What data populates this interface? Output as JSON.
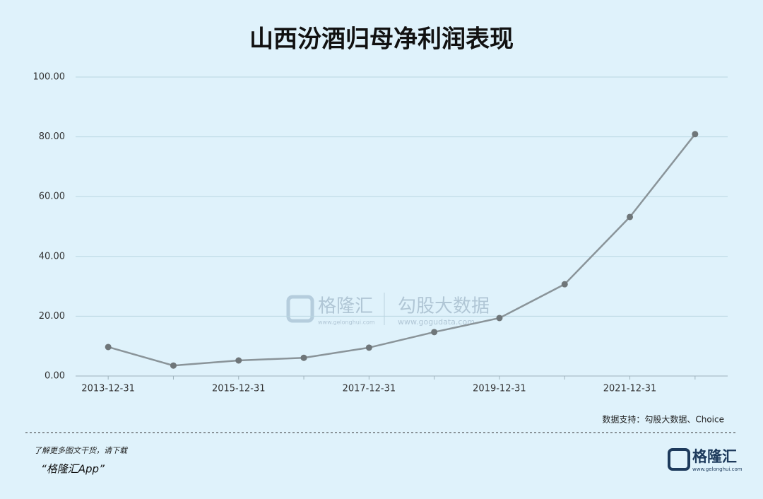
{
  "chart_data": {
    "type": "line",
    "title": "山西汾酒归母净利润表现",
    "categories": [
      "2013-12-31",
      null,
      "2015-12-31",
      null,
      "2017-12-31",
      null,
      "2019-12-31",
      null,
      "2021-12-31",
      null
    ],
    "values": [
      9.7,
      3.5,
      5.2,
      6.1,
      9.5,
      14.7,
      19.4,
      30.7,
      53.2,
      80.9
    ],
    "color": "#8a9499",
    "marker_color": "#6f7679",
    "ylim": [
      0,
      100
    ],
    "yticks": [
      {
        "value": 0,
        "label": "0.00"
      },
      {
        "value": 20,
        "label": "20.00"
      },
      {
        "value": 40,
        "label": "40.00"
      },
      {
        "value": 60,
        "label": "60.00"
      },
      {
        "value": 80,
        "label": "80.00"
      },
      {
        "value": 100,
        "label": "100.00"
      }
    ],
    "grid": true,
    "source": "数据支持：勾股大数据、Choice"
  },
  "watermark": {
    "brand": "格隆汇",
    "brand_url": "www.gelonghui.com",
    "partner": "勾股大数据",
    "partner_url": "www.gogudata.com"
  },
  "footer": {
    "line1": "了解更多图文干货，请下载",
    "line2": "“格隆汇App”",
    "logo": "格隆汇",
    "logo_url": "www.gelonghui.com"
  }
}
